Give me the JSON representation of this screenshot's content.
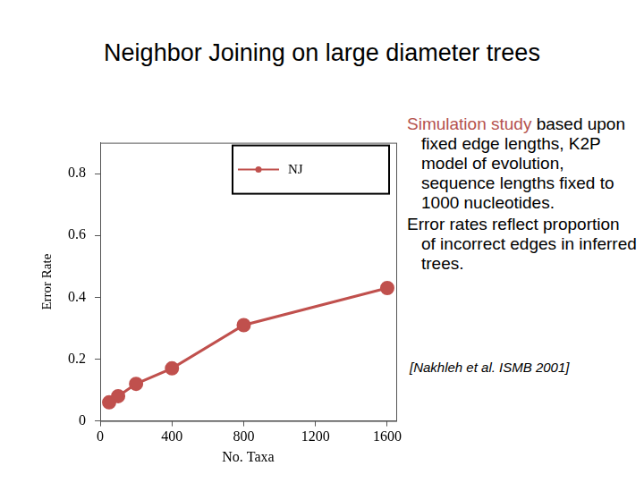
{
  "chart_data": {
    "type": "line",
    "title": "Neighbor Joining on large diameter trees",
    "x_label": "No. Taxa",
    "y_label": "Error Rate",
    "series": [
      {
        "name": "NJ",
        "color": "#c0504d",
        "marker": "circle",
        "line_style": "solid",
        "x": [
          50,
          100,
          200,
          400,
          800,
          1600
        ],
        "values": [
          0.06,
          0.08,
          0.12,
          0.17,
          0.31,
          0.43
        ]
      }
    ],
    "xlim": [
      0,
      1650
    ],
    "xticks": [
      0,
      400,
      800,
      1200,
      1600
    ],
    "ylim": [
      0,
      0.9
    ],
    "yticks": [
      0,
      0.2,
      0.4,
      0.6,
      0.8
    ],
    "grid": false,
    "legend": "upper right"
  },
  "notes": [
    {
      "highlight": "Simulation study",
      "text": " based upon fixed edge lengths, K2P model of evolution, sequence lengths fixed to 1000 nucleotides."
    },
    {
      "highlight": "",
      "text": "Error rates reflect proportion of incorrect edges in inferred trees."
    }
  ],
  "citation": "[Nakhleh et al. ISMB 2001]"
}
